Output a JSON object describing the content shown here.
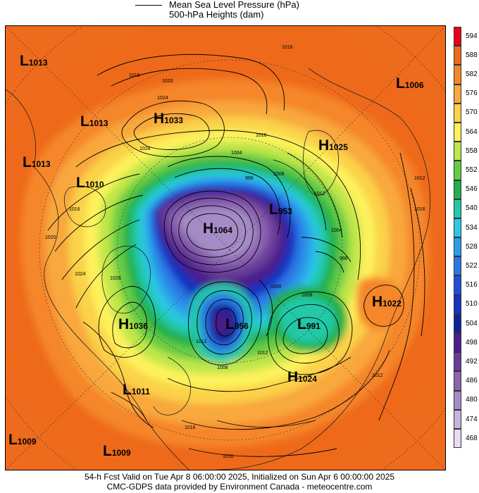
{
  "header": {
    "legend_line_label": "Mean Sea Level Pressure (hPa)",
    "fill_label": "500-hPa Heights (dam)"
  },
  "pressure_centers": [
    {
      "type": "L",
      "value": "1013"
    },
    {
      "type": "L",
      "value": "1013"
    },
    {
      "type": "H",
      "value": "1033"
    },
    {
      "type": "L",
      "value": "1013"
    },
    {
      "type": "L",
      "value": "1010"
    },
    {
      "type": "H",
      "value": "1025"
    },
    {
      "type": "L",
      "value": "1006"
    },
    {
      "type": "L",
      "value": "953"
    },
    {
      "type": "H",
      "value": "1064"
    },
    {
      "type": "H",
      "value": "1022"
    },
    {
      "type": "H",
      "value": "1036"
    },
    {
      "type": "L",
      "value": "956"
    },
    {
      "type": "L",
      "value": "991"
    },
    {
      "type": "H",
      "value": "1024"
    },
    {
      "type": "L",
      "value": "1011"
    },
    {
      "type": "L",
      "value": "1009"
    },
    {
      "type": "L",
      "value": "1009"
    }
  ],
  "isobar_labels": [
    "1016",
    "1020",
    "1024",
    "1028",
    "1016",
    "1004",
    "996",
    "1008",
    "1016",
    "1012",
    "1004",
    "996",
    "1000",
    "1008",
    "1012",
    "1016",
    "1008",
    "1012",
    "1016",
    "1020",
    "1016",
    "1012",
    "1024",
    "1028",
    "1016",
    "1012"
  ],
  "colorbar": {
    "unit": "dam",
    "levels": [
      "594",
      "588",
      "582",
      "576",
      "570",
      "564",
      "558",
      "552",
      "546",
      "540",
      "534",
      "528",
      "522",
      "516",
      "510",
      "504",
      "498",
      "492",
      "486",
      "480",
      "474",
      "468"
    ],
    "colors": [
      "#e8001c",
      "#ee6a1a",
      "#f5862a",
      "#f8a83c",
      "#fbd24a",
      "#fdf25c",
      "#bfe64a",
      "#66cc44",
      "#22b04a",
      "#22c8a8",
      "#2ac8e6",
      "#2a9ee8",
      "#2a78e6",
      "#1f50d8",
      "#1632c0",
      "#10209a",
      "#4a1e8a",
      "#6a3c9a",
      "#8a64b0",
      "#a68cc6",
      "#c4b4dc",
      "#e6dcee"
    ]
  },
  "footer": {
    "line1": "54-h Fcst Valid on Tue Apr  8 06:00:00 2025, Initialized on Sun Apr  6 00:00:00 2025",
    "line2": "CMC-GDPS data provided by Environment Canada - meteocentre.com"
  }
}
